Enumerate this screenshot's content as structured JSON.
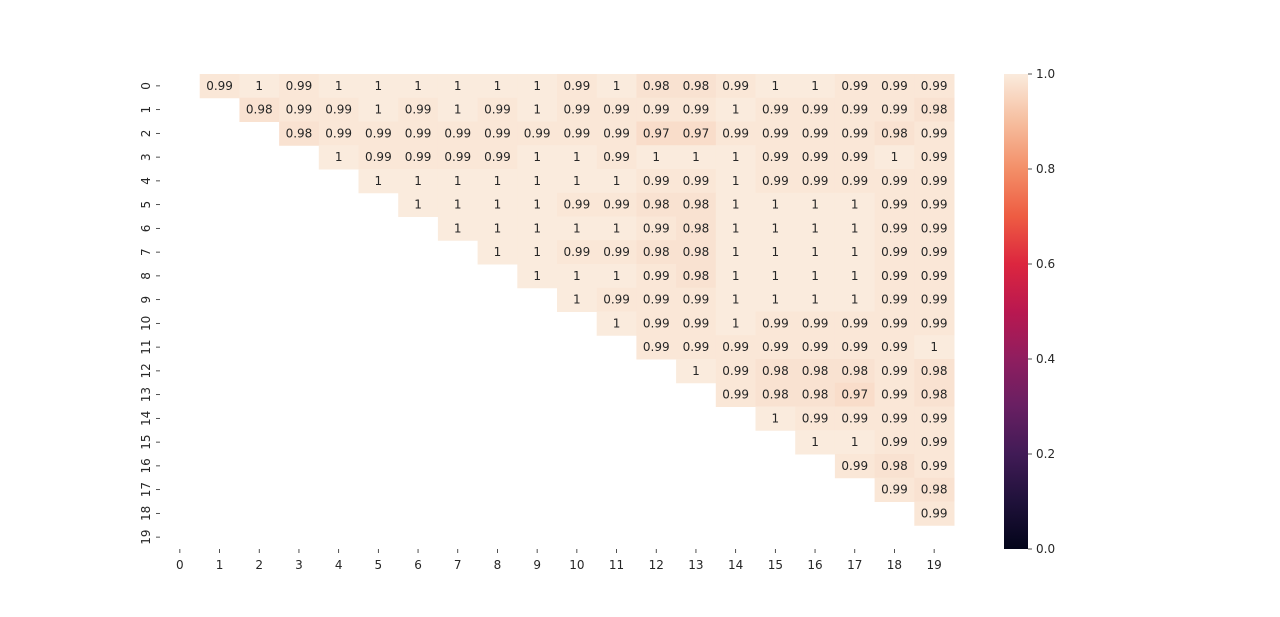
{
  "chart_data": {
    "type": "heatmap",
    "title": "",
    "xlabel": "",
    "ylabel": "",
    "x_labels": [
      "0",
      "1",
      "2",
      "3",
      "4",
      "5",
      "6",
      "7",
      "8",
      "9",
      "10",
      "11",
      "12",
      "13",
      "14",
      "15",
      "16",
      "17",
      "18",
      "19"
    ],
    "y_labels": [
      "0",
      "1",
      "2",
      "3",
      "4",
      "5",
      "6",
      "7",
      "8",
      "9",
      "10",
      "11",
      "12",
      "13",
      "14",
      "15",
      "16",
      "17",
      "18",
      "19"
    ],
    "mask": "upper-triangle-excluding-diagonal",
    "values": [
      [
        null,
        0.99,
        1,
        0.99,
        1,
        1,
        1,
        1,
        1,
        1,
        0.99,
        1,
        0.98,
        0.98,
        0.99,
        1,
        1,
        0.99,
        0.99,
        0.99
      ],
      [
        null,
        null,
        0.98,
        0.99,
        0.99,
        1,
        0.99,
        1,
        0.99,
        1,
        0.99,
        0.99,
        0.99,
        0.99,
        1,
        0.99,
        0.99,
        0.99,
        0.99,
        0.98
      ],
      [
        null,
        null,
        null,
        0.98,
        0.99,
        0.99,
        0.99,
        0.99,
        0.99,
        0.99,
        0.99,
        0.99,
        0.97,
        0.97,
        0.99,
        0.99,
        0.99,
        0.99,
        0.98,
        0.99
      ],
      [
        null,
        null,
        null,
        null,
        1,
        0.99,
        0.99,
        0.99,
        0.99,
        1,
        1,
        0.99,
        1,
        1,
        1,
        0.99,
        0.99,
        0.99,
        1,
        0.99
      ],
      [
        null,
        null,
        null,
        null,
        null,
        1,
        1,
        1,
        1,
        1,
        1,
        1,
        0.99,
        0.99,
        1,
        0.99,
        0.99,
        0.99,
        0.99,
        0.99
      ],
      [
        null,
        null,
        null,
        null,
        null,
        null,
        1,
        1,
        1,
        1,
        0.99,
        0.99,
        0.98,
        0.98,
        1,
        1,
        1,
        1,
        0.99,
        0.99
      ],
      [
        null,
        null,
        null,
        null,
        null,
        null,
        null,
        1,
        1,
        1,
        1,
        1,
        0.99,
        0.98,
        1,
        1,
        1,
        1,
        0.99,
        0.99
      ],
      [
        null,
        null,
        null,
        null,
        null,
        null,
        null,
        null,
        1,
        1,
        0.99,
        0.99,
        0.98,
        0.98,
        1,
        1,
        1,
        1,
        0.99,
        0.99
      ],
      [
        null,
        null,
        null,
        null,
        null,
        null,
        null,
        null,
        null,
        1,
        1,
        1,
        0.99,
        0.98,
        1,
        1,
        1,
        1,
        0.99,
        0.99
      ],
      [
        null,
        null,
        null,
        null,
        null,
        null,
        null,
        null,
        null,
        null,
        1,
        0.99,
        0.99,
        0.99,
        1,
        1,
        1,
        1,
        0.99,
        0.99
      ],
      [
        null,
        null,
        null,
        null,
        null,
        null,
        null,
        null,
        null,
        null,
        null,
        1,
        0.99,
        0.99,
        1,
        0.99,
        0.99,
        0.99,
        0.99,
        0.99
      ],
      [
        null,
        null,
        null,
        null,
        null,
        null,
        null,
        null,
        null,
        null,
        null,
        null,
        0.99,
        0.99,
        0.99,
        0.99,
        0.99,
        0.99,
        0.99,
        1
      ],
      [
        null,
        null,
        null,
        null,
        null,
        null,
        null,
        null,
        null,
        null,
        null,
        null,
        null,
        1,
        0.99,
        0.98,
        0.98,
        0.98,
        0.99,
        0.98
      ],
      [
        null,
        null,
        null,
        null,
        null,
        null,
        null,
        null,
        null,
        null,
        null,
        null,
        null,
        null,
        0.99,
        0.98,
        0.98,
        0.97,
        0.99,
        0.98
      ],
      [
        null,
        null,
        null,
        null,
        null,
        null,
        null,
        null,
        null,
        null,
        null,
        null,
        null,
        null,
        null,
        1,
        0.99,
        0.99,
        0.99,
        0.99
      ],
      [
        null,
        null,
        null,
        null,
        null,
        null,
        null,
        null,
        null,
        null,
        null,
        null,
        null,
        null,
        null,
        null,
        1,
        1,
        0.99,
        0.99
      ],
      [
        null,
        null,
        null,
        null,
        null,
        null,
        null,
        null,
        null,
        null,
        null,
        null,
        null,
        null,
        null,
        null,
        null,
        0.99,
        0.98,
        0.99
      ],
      [
        null,
        null,
        null,
        null,
        null,
        null,
        null,
        null,
        null,
        null,
        null,
        null,
        null,
        null,
        null,
        null,
        null,
        null,
        0.99,
        0.98
      ],
      [
        null,
        null,
        null,
        null,
        null,
        null,
        null,
        null,
        null,
        null,
        null,
        null,
        null,
        null,
        null,
        null,
        null,
        null,
        null,
        0.99
      ],
      [
        null,
        null,
        null,
        null,
        null,
        null,
        null,
        null,
        null,
        null,
        null,
        null,
        null,
        null,
        null,
        null,
        null,
        null,
        null,
        null
      ]
    ],
    "colorbar": {
      "colormap": "rocket",
      "vmin": 0.0,
      "vmax": 1.0,
      "ticks": [
        "0.0",
        "0.2",
        "0.4",
        "0.6",
        "0.8",
        "1.0"
      ]
    },
    "annotation_color": "#262626",
    "grid": false,
    "legend": "colorbar-right"
  }
}
